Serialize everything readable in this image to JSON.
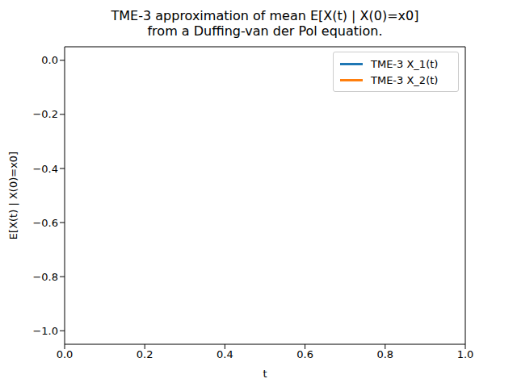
{
  "chart_data": {
    "type": "line",
    "title": "TME-3 approximation of mean E[X(t) | X(0)=x0]\nfrom a Duffing-van der Pol equation.",
    "x_label": "t",
    "y_label": "E[X(t) | X(0)=x0]",
    "x": [],
    "series": [
      {
        "name": "TME-3 X_1(t)",
        "color": "#1f77b4",
        "values": []
      },
      {
        "name": "TME-3 X_2(t)",
        "color": "#ff7f0e",
        "values": []
      }
    ],
    "xlim": [
      0,
      1
    ],
    "xticks": [
      {
        "value": 0,
        "label": "0.0"
      },
      {
        "value": 0.2,
        "label": "0.2"
      },
      {
        "value": 0.4,
        "label": "0.4"
      },
      {
        "value": 0.6,
        "label": "0.6"
      },
      {
        "value": 0.8,
        "label": "0.8"
      },
      {
        "value": 1,
        "label": "1.0"
      }
    ],
    "ylim": [
      -1.05,
      0.05
    ],
    "yticks": [
      {
        "value": -1,
        "label": "−1.0"
      },
      {
        "value": -0.8,
        "label": "−0.8"
      },
      {
        "value": -0.6,
        "label": "−0.6"
      },
      {
        "value": -0.4,
        "label": "−0.4"
      },
      {
        "value": -0.2,
        "label": "−0.2"
      },
      {
        "value": 0,
        "label": "0.0"
      }
    ],
    "legend": "upper right",
    "grid": false
  }
}
